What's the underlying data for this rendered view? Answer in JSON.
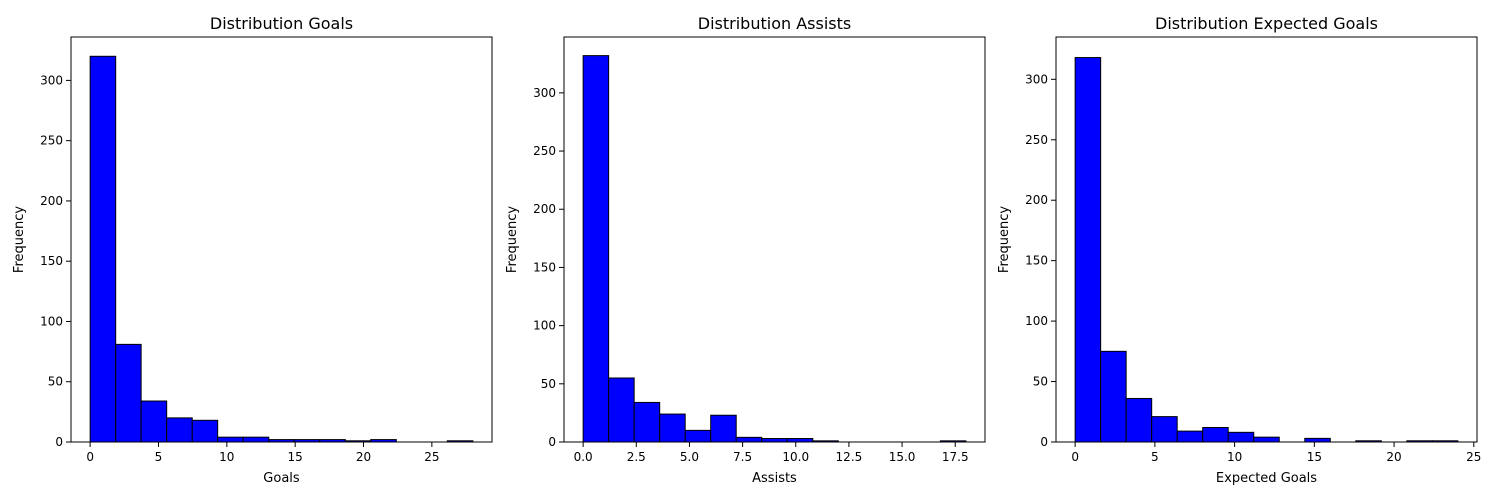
{
  "chart_data": [
    {
      "type": "bar",
      "title": "Distribution Goals",
      "xlabel": "Goals",
      "ylabel": "Frequency",
      "xlim": [
        -1.4,
        29.4
      ],
      "ylim": [
        0,
        336
      ],
      "xticks": [
        0,
        5,
        10,
        15,
        20,
        25
      ],
      "xtick_labels": [
        "0",
        "5",
        "10",
        "15",
        "20",
        "25"
      ],
      "yticks": [
        0,
        50,
        100,
        150,
        200,
        250,
        300
      ],
      "ytick_labels": [
        "0",
        "50",
        "100",
        "150",
        "200",
        "250",
        "300"
      ],
      "bin_edges": [
        0,
        1.87,
        3.73,
        5.6,
        7.47,
        9.33,
        11.2,
        13.07,
        14.93,
        16.8,
        18.67,
        20.53,
        22.4,
        24.27,
        26.13,
        28
      ],
      "values": [
        320,
        81,
        34,
        20,
        18,
        4,
        4,
        2,
        2,
        2,
        1,
        2,
        0,
        0,
        1
      ],
      "bar_color": "#0000ff",
      "edge_color": "#000000",
      "grid": false
    },
    {
      "type": "bar",
      "title": "Distribution Assists",
      "xlabel": "Assists",
      "ylabel": "Frequency",
      "xlim": [
        -0.9,
        18.9
      ],
      "ylim": [
        0,
        348
      ],
      "xticks": [
        0,
        2.5,
        5,
        7.5,
        10,
        12.5,
        15,
        17.5
      ],
      "xtick_labels": [
        "0.0",
        "2.5",
        "5.0",
        "7.5",
        "10.0",
        "12.5",
        "15.0",
        "17.5"
      ],
      "yticks": [
        0,
        50,
        100,
        150,
        200,
        250,
        300
      ],
      "ytick_labels": [
        "0",
        "50",
        "100",
        "150",
        "200",
        "250",
        "300"
      ],
      "bin_edges": [
        0,
        1.2,
        2.4,
        3.6,
        4.8,
        6,
        7.2,
        8.4,
        9.6,
        10.8,
        12,
        13.2,
        14.4,
        15.6,
        16.8,
        18
      ],
      "values": [
        332,
        55,
        34,
        24,
        10,
        23,
        4,
        3,
        3,
        1,
        0,
        0,
        0,
        0,
        1
      ],
      "bar_color": "#0000ff",
      "edge_color": "#000000",
      "grid": false
    },
    {
      "type": "bar",
      "title": "Distribution Expected Goals",
      "xlabel": "Expected Goals",
      "ylabel": "Frequency",
      "xlim": [
        -1.2,
        25.2
      ],
      "ylim": [
        0,
        335
      ],
      "xticks": [
        0,
        5,
        10,
        15,
        20,
        25
      ],
      "xtick_labels": [
        "0",
        "5",
        "10",
        "15",
        "20",
        "25"
      ],
      "yticks": [
        0,
        50,
        100,
        150,
        200,
        250,
        300
      ],
      "ytick_labels": [
        "0",
        "50",
        "100",
        "150",
        "200",
        "250",
        "300"
      ],
      "bin_edges": [
        0,
        1.6,
        3.2,
        4.8,
        6.4,
        8,
        9.6,
        11.2,
        12.8,
        14.4,
        16,
        17.6,
        19.2,
        20.8,
        22.4,
        24
      ],
      "values": [
        318,
        75,
        36,
        21,
        9,
        12,
        8,
        4,
        0,
        3,
        0,
        1,
        0,
        1,
        1
      ],
      "bar_color": "#0000ff",
      "edge_color": "#000000",
      "grid": false
    }
  ]
}
